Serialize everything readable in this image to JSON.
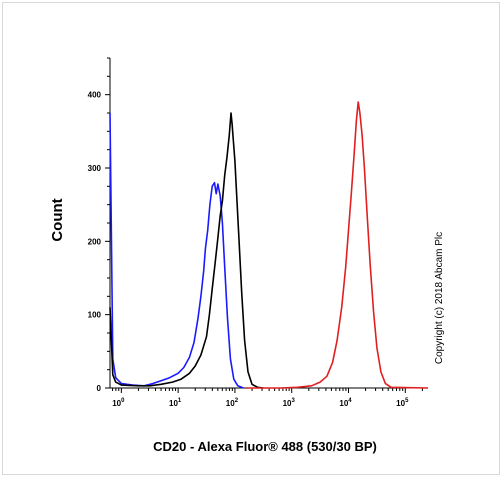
{
  "chart_data": {
    "type": "line",
    "xlabel": "CD20 - Alexa Fluor® 488 (530/30 BP)",
    "ylabel": "Count",
    "x_scale": "log",
    "xlim_log10": [
      -0.2,
      5.4
    ],
    "ylim": [
      0,
      450
    ],
    "x_ticks": [
      {
        "exp": 0,
        "base": "10",
        "sup": "0"
      },
      {
        "exp": 1,
        "base": "10",
        "sup": "1"
      },
      {
        "exp": 2,
        "base": "10",
        "sup": "2"
      },
      {
        "exp": 3,
        "base": "10",
        "sup": "3"
      },
      {
        "exp": 4,
        "base": "10",
        "sup": "4"
      },
      {
        "exp": 5,
        "base": "10",
        "sup": "5"
      }
    ],
    "y_ticks": [
      0,
      100,
      200,
      300,
      400
    ],
    "grid": false,
    "legend": "none",
    "series": [
      {
        "color": "#1a1aff",
        "points": [
          [
            -0.2,
            375
          ],
          [
            -0.15,
            40
          ],
          [
            -0.1,
            14
          ],
          [
            0,
            6
          ],
          [
            0.2,
            4
          ],
          [
            0.4,
            3
          ],
          [
            0.55,
            6
          ],
          [
            0.7,
            10
          ],
          [
            0.85,
            14
          ],
          [
            1.0,
            20
          ],
          [
            1.1,
            28
          ],
          [
            1.2,
            42
          ],
          [
            1.28,
            62
          ],
          [
            1.35,
            95
          ],
          [
            1.4,
            125
          ],
          [
            1.45,
            160
          ],
          [
            1.48,
            190
          ],
          [
            1.52,
            215
          ],
          [
            1.56,
            250
          ],
          [
            1.6,
            275
          ],
          [
            1.64,
            280
          ],
          [
            1.67,
            265
          ],
          [
            1.7,
            278
          ],
          [
            1.74,
            262
          ],
          [
            1.78,
            225
          ],
          [
            1.82,
            165
          ],
          [
            1.87,
            95
          ],
          [
            1.92,
            40
          ],
          [
            1.98,
            12
          ],
          [
            2.05,
            3
          ],
          [
            2.15,
            0
          ]
        ]
      },
      {
        "color": "#000000",
        "points": [
          [
            -0.2,
            110
          ],
          [
            -0.15,
            18
          ],
          [
            -0.1,
            8
          ],
          [
            0,
            4
          ],
          [
            0.3,
            3
          ],
          [
            0.5,
            3
          ],
          [
            0.7,
            5
          ],
          [
            0.9,
            8
          ],
          [
            1.05,
            12
          ],
          [
            1.2,
            20
          ],
          [
            1.3,
            30
          ],
          [
            1.4,
            45
          ],
          [
            1.5,
            70
          ],
          [
            1.55,
            100
          ],
          [
            1.6,
            135
          ],
          [
            1.65,
            170
          ],
          [
            1.7,
            205
          ],
          [
            1.74,
            235
          ],
          [
            1.78,
            255
          ],
          [
            1.82,
            290
          ],
          [
            1.86,
            315
          ],
          [
            1.9,
            345
          ],
          [
            1.93,
            375
          ],
          [
            1.95,
            360
          ],
          [
            1.97,
            340
          ],
          [
            2.0,
            310
          ],
          [
            2.03,
            265
          ],
          [
            2.07,
            205
          ],
          [
            2.12,
            130
          ],
          [
            2.17,
            65
          ],
          [
            2.23,
            22
          ],
          [
            2.3,
            5
          ],
          [
            2.4,
            1
          ],
          [
            2.5,
            0
          ]
        ]
      },
      {
        "color": "#e02020",
        "points": [
          [
            2.2,
            0
          ],
          [
            2.8,
            0
          ],
          [
            3.1,
            1
          ],
          [
            3.35,
            3
          ],
          [
            3.5,
            8
          ],
          [
            3.62,
            16
          ],
          [
            3.72,
            35
          ],
          [
            3.8,
            65
          ],
          [
            3.88,
            110
          ],
          [
            3.95,
            165
          ],
          [
            4.0,
            215
          ],
          [
            4.05,
            265
          ],
          [
            4.1,
            320
          ],
          [
            4.14,
            365
          ],
          [
            4.17,
            390
          ],
          [
            4.2,
            375
          ],
          [
            4.24,
            345
          ],
          [
            4.28,
            300
          ],
          [
            4.33,
            235
          ],
          [
            4.38,
            170
          ],
          [
            4.44,
            105
          ],
          [
            4.5,
            55
          ],
          [
            4.57,
            22
          ],
          [
            4.65,
            6
          ],
          [
            4.75,
            1
          ],
          [
            5.4,
            0
          ]
        ]
      }
    ]
  },
  "copyright": "Copyright (c) 2018 Abcam Plc"
}
